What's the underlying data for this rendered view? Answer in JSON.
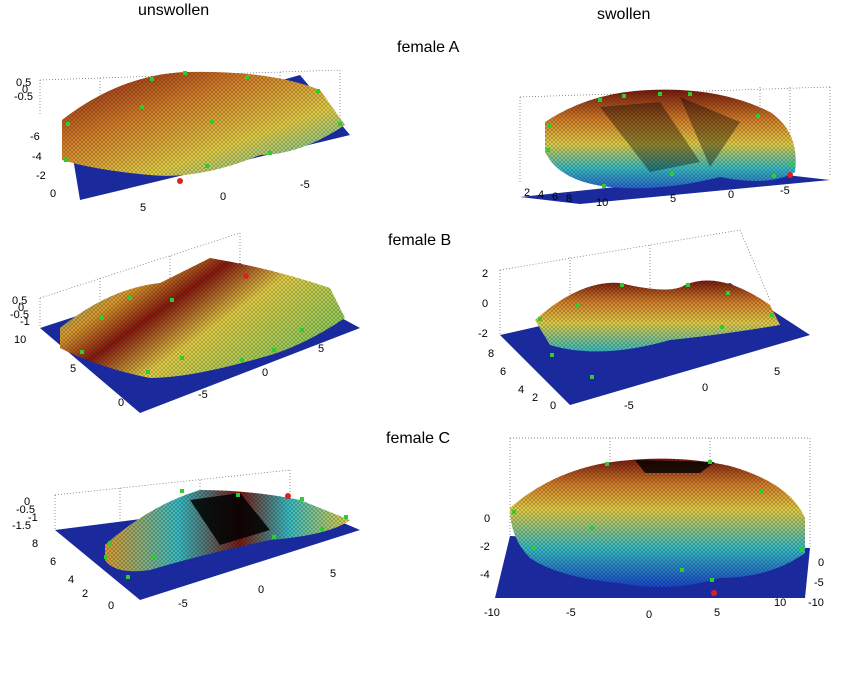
{
  "headers": {
    "left_column": "unswollen",
    "right_column": "swollen"
  },
  "rows": [
    {
      "label": "female A"
    },
    {
      "label": "female B"
    },
    {
      "label": "female C"
    }
  ],
  "panels": [
    {
      "id": "A-unswollen",
      "z_ticks": [
        "0.5",
        "0",
        "-0.5"
      ],
      "y_ticks": [
        "-6",
        "-4",
        "-2",
        "0"
      ],
      "x_ticks": [
        "5",
        "0",
        "-5"
      ]
    },
    {
      "id": "A-swollen",
      "y_ticks": [
        "2",
        "4",
        "6",
        "8",
        "10"
      ],
      "x_ticks": [
        "5",
        "0",
        "-5"
      ]
    },
    {
      "id": "B-unswollen",
      "z_ticks": [
        "0.5",
        "0",
        "-0.5",
        "-1"
      ],
      "y_ticks": [
        "10",
        "5",
        "0"
      ],
      "x_ticks": [
        "-5",
        "0",
        "5"
      ]
    },
    {
      "id": "B-swollen",
      "z_ticks": [
        "2",
        "0",
        "-2"
      ],
      "y_ticks": [
        "8",
        "6",
        "4",
        "2",
        "0"
      ],
      "x_ticks": [
        "-5",
        "0",
        "5"
      ]
    },
    {
      "id": "C-unswollen",
      "z_ticks": [
        "0",
        "-0.5",
        "-1",
        "-1.5"
      ],
      "y_ticks": [
        "8",
        "6",
        "4",
        "2",
        "0"
      ],
      "x_ticks": [
        "-5",
        "0",
        "5"
      ]
    },
    {
      "id": "C-swollen",
      "z_ticks": [
        "0",
        "-2",
        "-4"
      ],
      "x_ticks": [
        "-10",
        "-5",
        "0",
        "5",
        "10"
      ],
      "y_ticks": [
        "0",
        "-5",
        "-10"
      ]
    }
  ],
  "colors": {
    "plane": "#1a2a9c",
    "landmark": "#2ecc2e",
    "marker": "#e02020",
    "grid": "#555555"
  }
}
